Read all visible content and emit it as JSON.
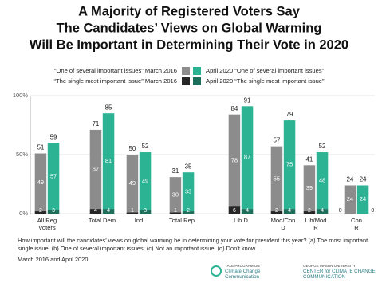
{
  "chart_data": {
    "type": "bar",
    "title": [
      "A Majority of Registered Voters Say",
      "The Candidates’ Views on Global Warming",
      "Will Be Important in Determining Their Vote in 2020"
    ],
    "categories": [
      [
        "All Reg",
        "Voters"
      ],
      [
        "Total Dem"
      ],
      [
        "Ind"
      ],
      [
        "Total Rep"
      ],
      [
        "Lib D"
      ],
      [
        "Mod/Con",
        "D"
      ],
      [
        "Lib/Mod",
        "R"
      ],
      [
        "Con",
        "R"
      ]
    ],
    "series": [
      {
        "name": "“One of several important issues” March 2016",
        "color": "#8c8c8c",
        "values": [
          49,
          67,
          49,
          30,
          78,
          55,
          39,
          24
        ]
      },
      {
        "name": "“The single most important issue” March 2016",
        "color": "#262626",
        "values": [
          2,
          4,
          1,
          1,
          6,
          2,
          2,
          0
        ]
      },
      {
        "name": "April 2020 “One of several important issues”",
        "color": "#2bb394",
        "values": [
          57,
          81,
          49,
          33,
          87,
          75,
          48,
          24
        ]
      },
      {
        "name": "April 2020 “The single most important issue”",
        "color": "#1e6e5c",
        "values": [
          3,
          4,
          3,
          2,
          4,
          4,
          4,
          0
        ]
      }
    ],
    "totals_2016": [
      51,
      71,
      50,
      31,
      84,
      57,
      41,
      24
    ],
    "totals_2020": [
      59,
      85,
      52,
      35,
      91,
      79,
      52,
      24
    ],
    "ylim": [
      0,
      100
    ],
    "yticks": [
      {
        "value": 0,
        "label": "0%"
      },
      {
        "value": 50,
        "label": "50%"
      },
      {
        "value": 100,
        "label": "100%"
      }
    ],
    "grid": true,
    "note": [
      "How important will the candidates’ views on global warming be in determining your vote for president this year? (a) The most important single issue; (b) One of several important issues; (c) Not an important issue; (d) Don’t know.",
      "March 2016 and April 2020."
    ],
    "logos": [
      [
        "YALE PROGRAM ON",
        "Climate Change",
        "Communication"
      ],
      [
        "GEORGE MASON UNIVERSITY",
        "CENTER for CLIMATE CHANGE",
        "COMMUNICATION"
      ]
    ]
  }
}
